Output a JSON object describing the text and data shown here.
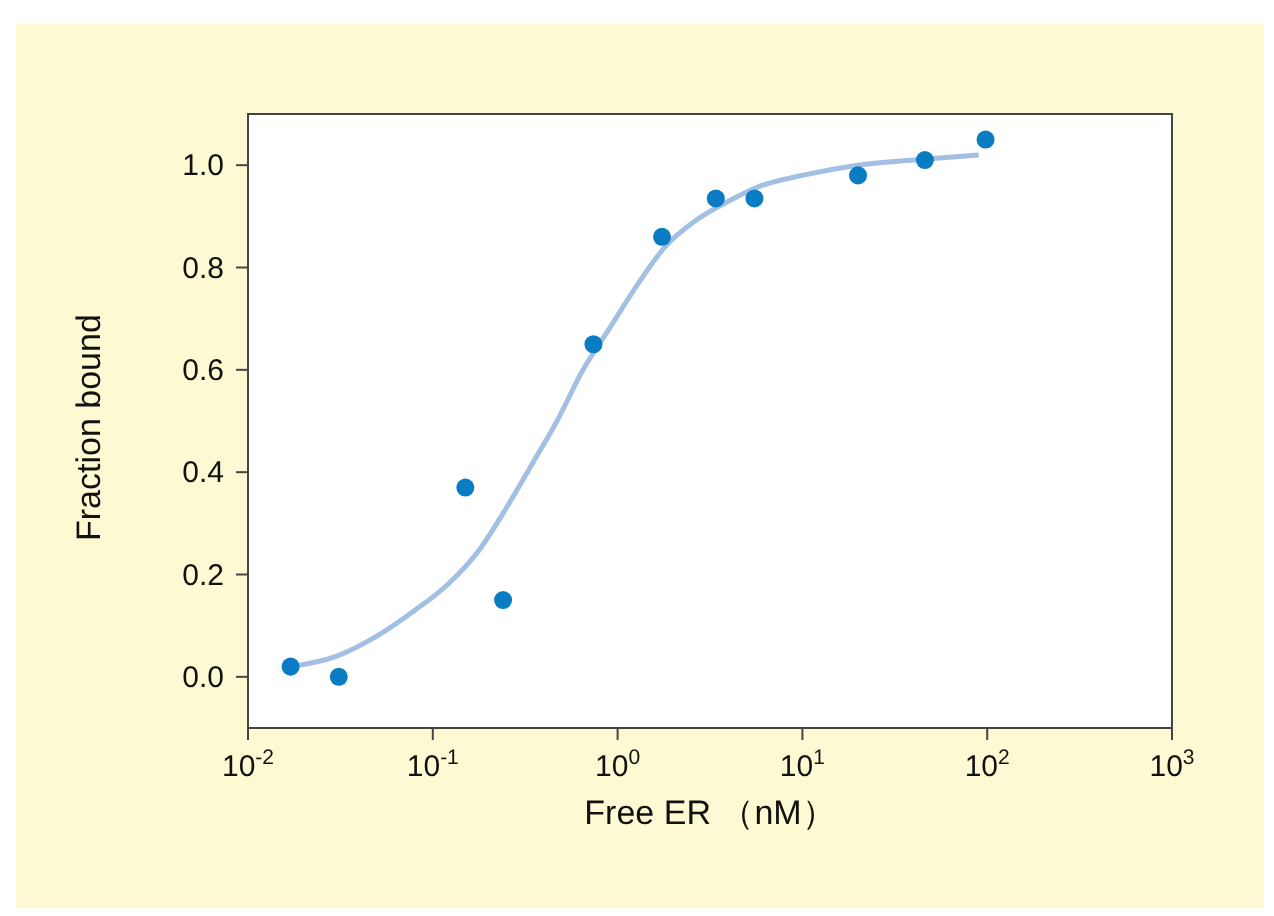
{
  "chart_data": {
    "type": "scatter",
    "xlabel": "Free ER （nM）",
    "ylabel": "Fraction bound",
    "log": "x",
    "xlim": [
      0.01,
      1000
    ],
    "ylim": [
      -0.1,
      1.1
    ],
    "xticks": [
      {
        "value": 0.01,
        "label": "10$^{-2}$"
      },
      {
        "value": 0.1,
        "label": "10$^{-1}$"
      },
      {
        "value": 1,
        "label": "10$^{0}$"
      },
      {
        "value": 10,
        "label": "10$^{1}$"
      },
      {
        "value": 100,
        "label": "10$^{2}$"
      },
      {
        "value": 1000,
        "label": "10$^{3}$"
      }
    ],
    "yticks": [
      {
        "value": 0,
        "label": "0.0"
      },
      {
        "value": 0.2,
        "label": "0.2"
      },
      {
        "value": 0.4,
        "label": "0.4"
      },
      {
        "value": 0.6,
        "label": "0.6"
      },
      {
        "value": 0.8,
        "label": "0.8"
      },
      {
        "value": 1,
        "label": "1.0"
      }
    ],
    "series": [
      {
        "type": "line",
        "color": "#a3bfe3",
        "marker": "none",
        "line_style": "solid",
        "x": [
          0.017,
          0.03,
          0.05,
          0.08,
          0.12,
          0.18,
          0.25,
          0.35,
          0.47,
          0.65,
          0.9,
          1.3,
          1.8,
          2.6,
          4,
          6,
          10,
          20,
          40,
          90
        ],
        "values": [
          0.02,
          0.04,
          0.08,
          0.13,
          0.18,
          0.25,
          0.33,
          0.42,
          0.5,
          0.6,
          0.68,
          0.77,
          0.84,
          0.89,
          0.93,
          0.96,
          0.98,
          1.0,
          1.01,
          1.02
        ]
      },
      {
        "color": "#0a7cc4",
        "marker": "circle",
        "x": [
          0.017,
          0.031,
          0.15,
          0.24,
          0.74,
          1.74,
          3.4,
          5.5,
          20,
          46,
          98
        ],
        "values": [
          0.02,
          0.0,
          0.37,
          0.15,
          0.65,
          0.86,
          0.935,
          0.935,
          0.98,
          1.01,
          1.05
        ]
      }
    ]
  }
}
